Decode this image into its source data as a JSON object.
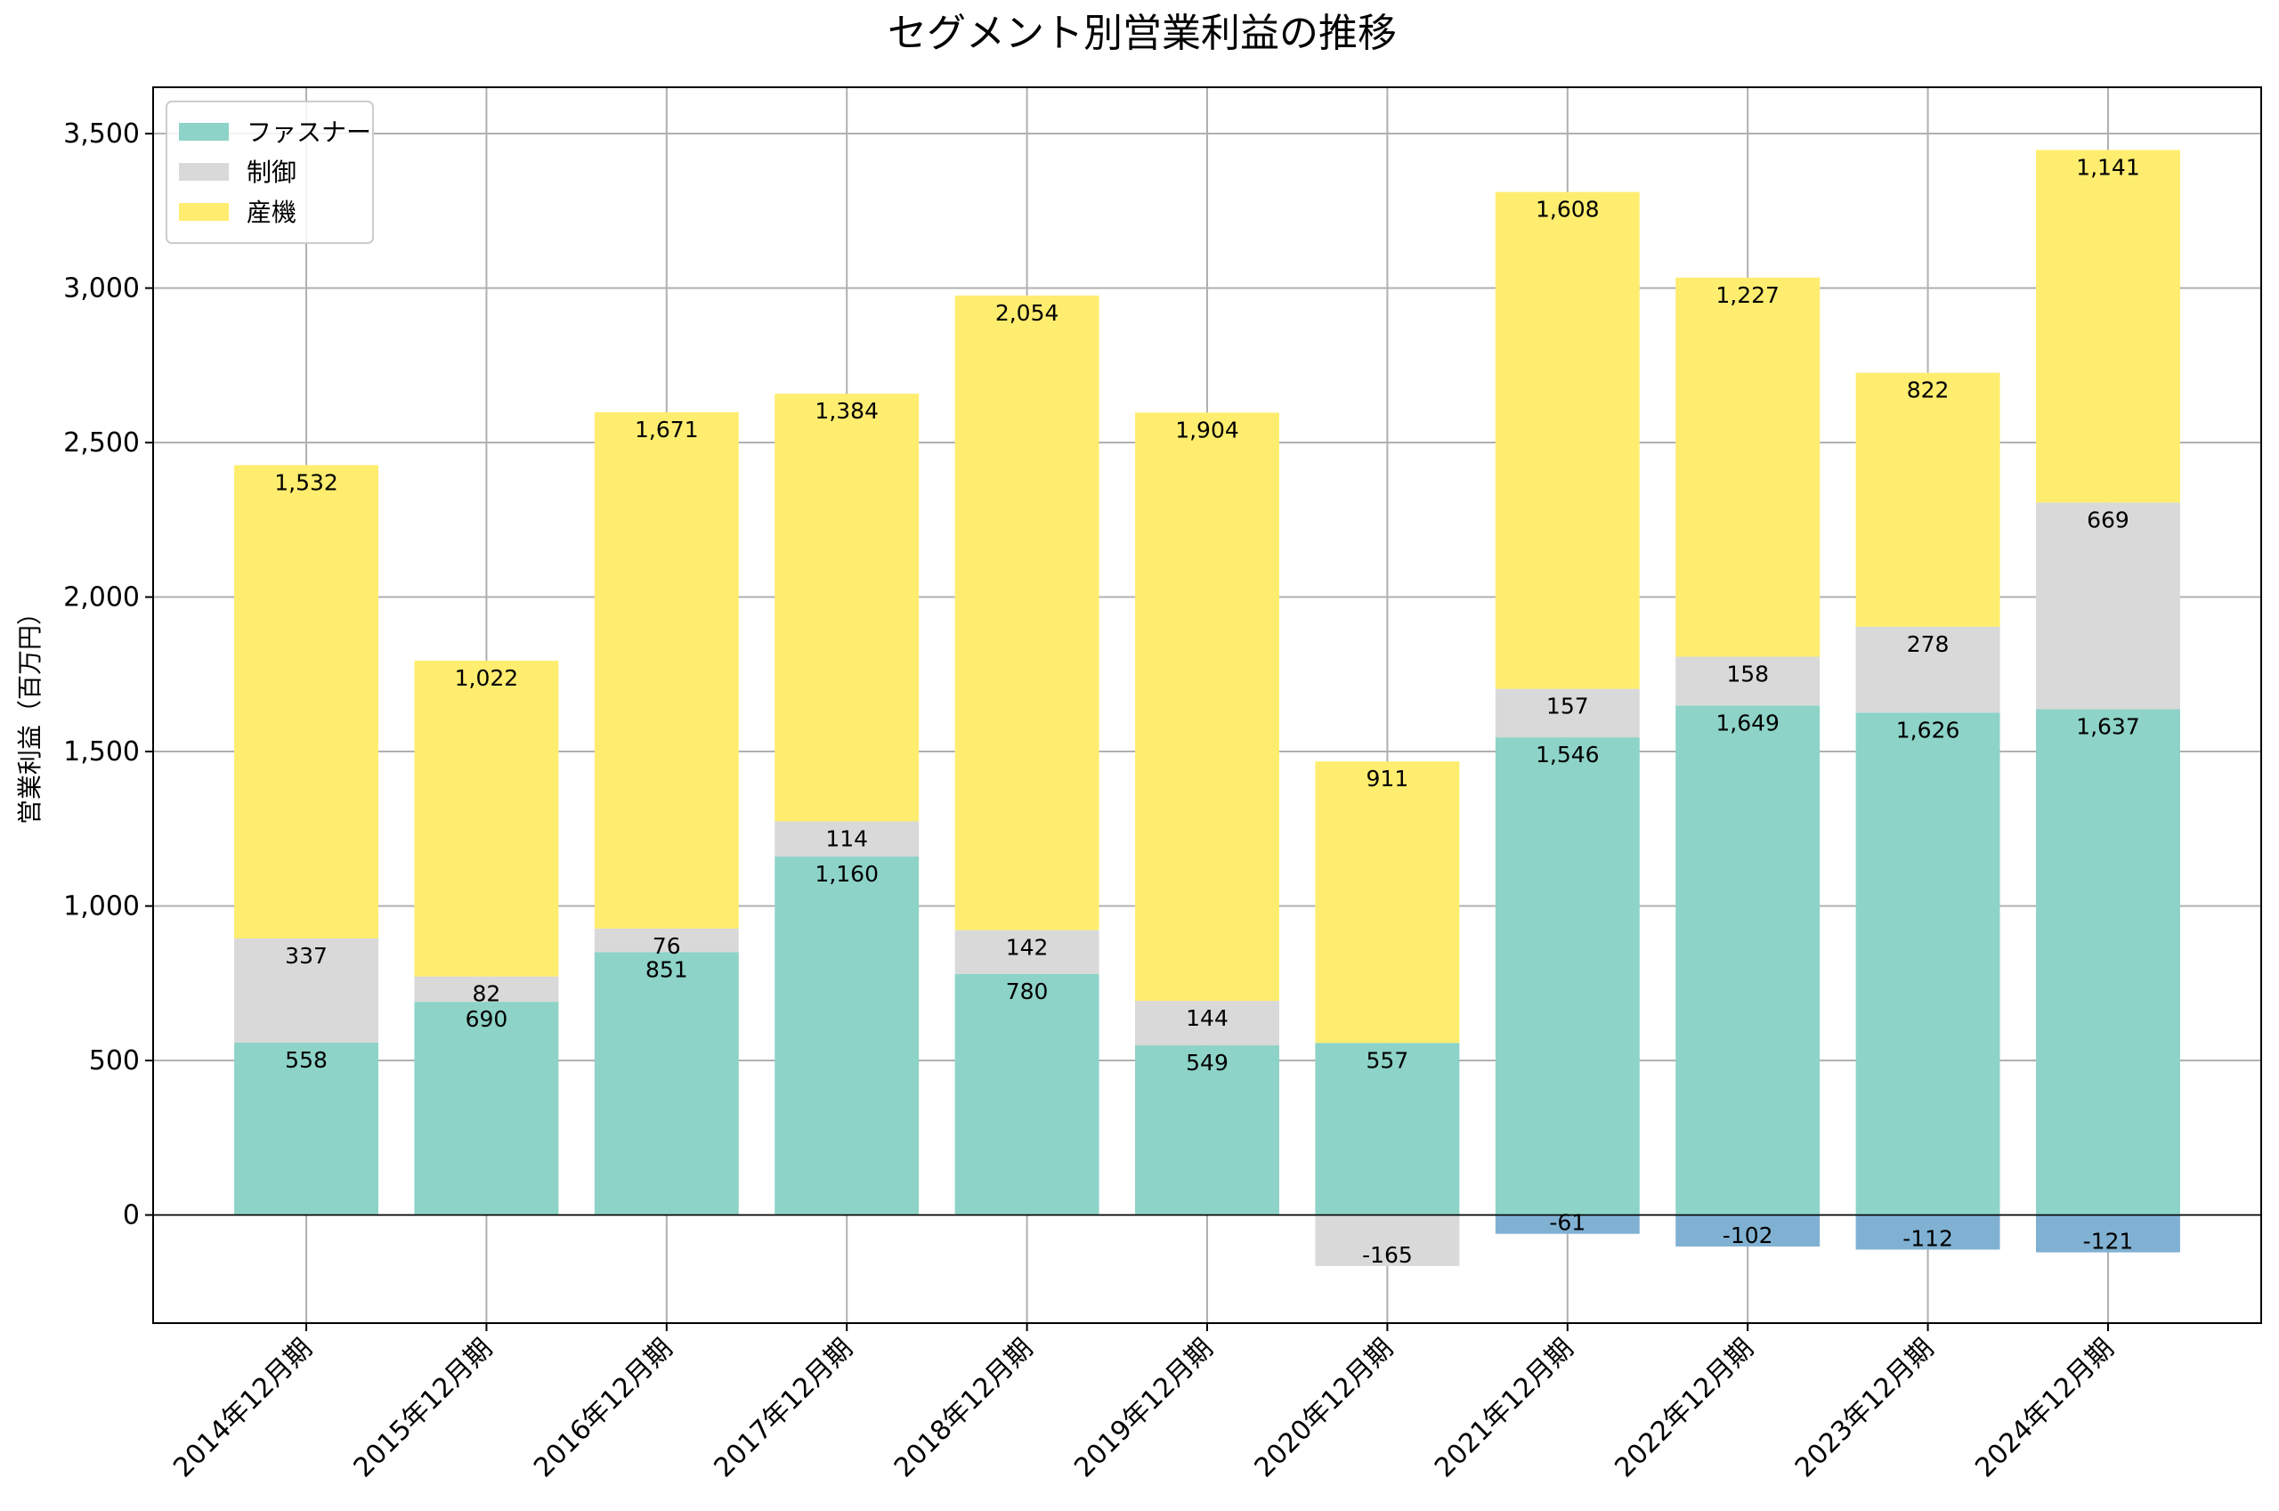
{
  "chart_data": {
    "type": "bar",
    "stacked": true,
    "title": "セグメント別営業利益の推移",
    "ylabel": "営業利益（百万円）",
    "xlabel": "",
    "ylim": [
      -350,
      3650
    ],
    "yticks": [
      0,
      500,
      1000,
      1500,
      2000,
      2500,
      3000,
      3500
    ],
    "ytick_labels": [
      "0",
      "500",
      "1,000",
      "1,500",
      "2,000",
      "2,500",
      "3,000",
      "3,500"
    ],
    "grid": true,
    "legend_position": "top-left",
    "categories": [
      "2014年12月期",
      "2015年12月期",
      "2016年12月期",
      "2017年12月期",
      "2018年12月期",
      "2019年12月期",
      "2020年12月期",
      "2021年12月期",
      "2022年12月期",
      "2023年12月期",
      "2024年12月期"
    ],
    "series": [
      {
        "name": "ファスナー",
        "color": "#8dd3c7",
        "values": [
          558,
          690,
          851,
          1160,
          780,
          549,
          557,
          1546,
          1649,
          1626,
          1637
        ]
      },
      {
        "name": "制御",
        "color": "#d9d9d9",
        "values": [
          337,
          82,
          76,
          114,
          142,
          144,
          -165,
          157,
          158,
          278,
          669
        ]
      },
      {
        "name": "産機",
        "color": "#ffed6f",
        "values": [
          1532,
          1022,
          1671,
          1384,
          2054,
          1904,
          911,
          1608,
          1227,
          822,
          1141
        ]
      },
      {
        "name": "",
        "color": "#80b1d3",
        "values": [
          0,
          0,
          0,
          0,
          0,
          0,
          0,
          -61,
          -102,
          -112,
          -121
        ]
      }
    ],
    "data_labels": [
      [
        "558",
        "690",
        "851",
        "1,160",
        "780",
        "549",
        "557",
        "1,546",
        "1,649",
        "1,626",
        "1,637"
      ],
      [
        "337",
        "82",
        "76",
        "114",
        "142",
        "144",
        "-165",
        "157",
        "158",
        "278",
        "669"
      ],
      [
        "1,532",
        "1,022",
        "1,671",
        "1,384",
        "2,054",
        "1,904",
        "911",
        "1,608",
        "1,227",
        "822",
        "1,141"
      ],
      [
        "",
        "",
        "",
        "",
        "",
        "",
        "",
        "-61",
        "-102",
        "-112",
        "-121"
      ]
    ]
  }
}
